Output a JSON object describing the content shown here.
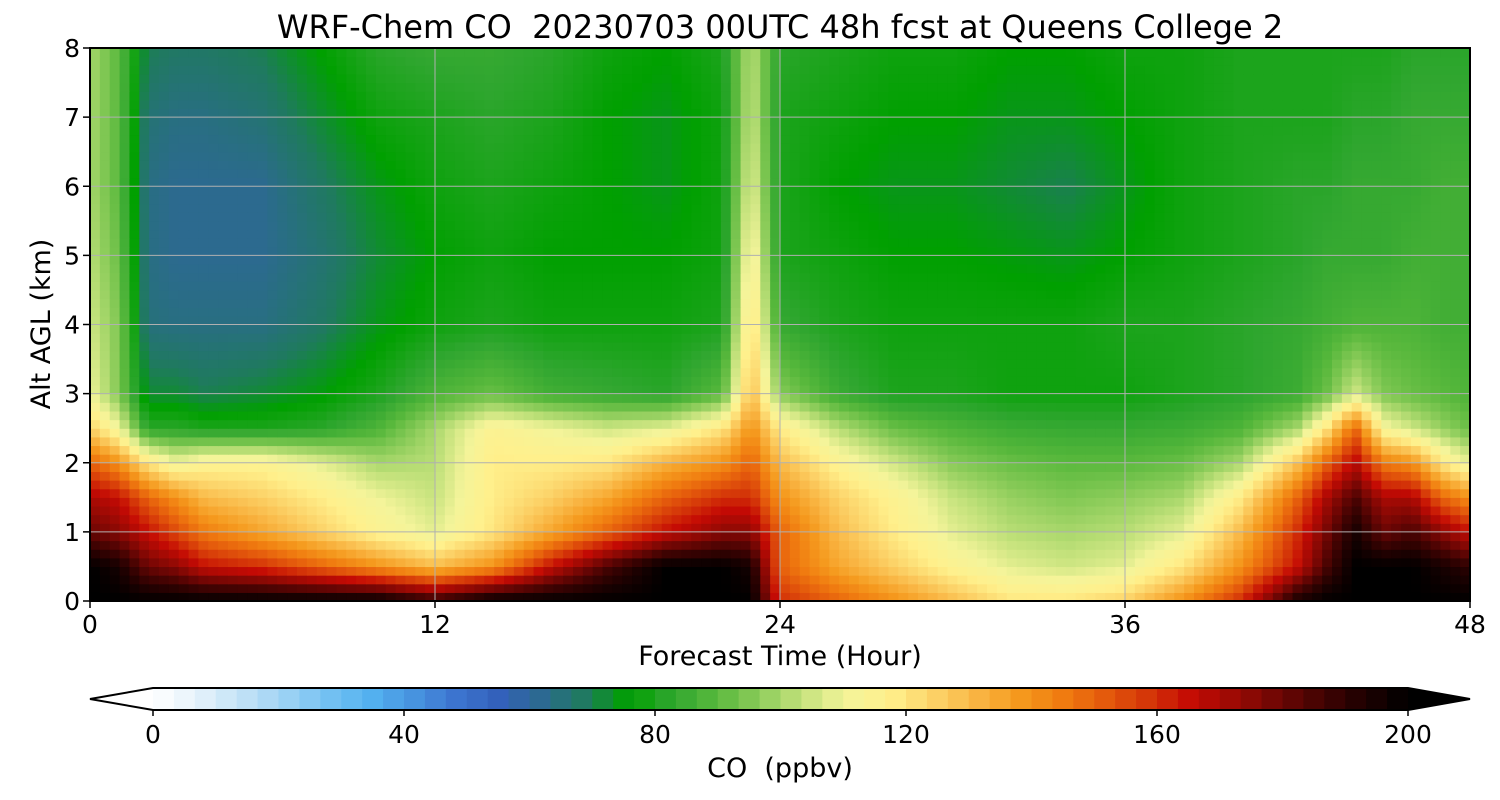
{
  "chart_data": {
    "type": "heatmap",
    "title": "WRF-Chem CO  20230703 00UTC 48h fcst at Queens College 2",
    "xlabel": "Forecast Time (Hour)",
    "ylabel": "Alt AGL (km)",
    "xlim": [
      0,
      48
    ],
    "ylim": [
      0,
      8
    ],
    "x_ticks": [
      0,
      12,
      24,
      36,
      48
    ],
    "y_ticks": [
      0,
      1,
      2,
      3,
      4,
      5,
      6,
      7,
      8
    ],
    "grid": true,
    "colorbar": {
      "label": "CO  (ppbv)",
      "range": [
        0,
        200
      ],
      "ticks": [
        0,
        40,
        80,
        120,
        160,
        200
      ],
      "extend": "both",
      "colors": [
        "#ffffff",
        "#e6f2fb",
        "#c4e3f7",
        "#9fd3f4",
        "#76c2f2",
        "#54b2f0",
        "#4894e0",
        "#3c74cf",
        "#3361ba",
        "#2c6a8f",
        "#1f7a5e",
        "#00a000",
        "#2fa62f",
        "#58b83c",
        "#8ccc5a",
        "#c4e27c",
        "#f4f49a",
        "#fff08c",
        "#fcd46a",
        "#f9b644",
        "#f59a1e",
        "#f07c10",
        "#e45a0c",
        "#d43508",
        "#c40a04",
        "#9a0a04",
        "#6e0604",
        "#420302",
        "#1e0101",
        "#000000"
      ]
    },
    "x": [
      0,
      1,
      2,
      3,
      4,
      6,
      8,
      10,
      12,
      14,
      16,
      18,
      20,
      22,
      23,
      24,
      26,
      28,
      30,
      32,
      34,
      36,
      38,
      40,
      42,
      43,
      44,
      45,
      46,
      47,
      48
    ],
    "y": [
      0,
      0.5,
      1,
      1.5,
      2,
      2.5,
      3,
      4,
      5,
      6,
      7,
      8
    ],
    "z": [
      [
        200,
        200,
        200,
        200,
        200,
        200,
        200,
        200,
        190,
        200,
        200,
        200,
        200,
        200,
        200,
        160,
        150,
        140,
        130,
        120,
        120,
        125,
        140,
        160,
        195,
        200,
        200,
        200,
        200,
        200,
        200
      ],
      [
        200,
        195,
        180,
        175,
        165,
        160,
        150,
        140,
        130,
        140,
        165,
        185,
        200,
        200,
        195,
        150,
        135,
        125,
        115,
        108,
        105,
        108,
        120,
        140,
        165,
        185,
        200,
        200,
        200,
        195,
        190
      ],
      [
        180,
        175,
        165,
        155,
        145,
        135,
        125,
        115,
        108,
        120,
        135,
        150,
        165,
        175,
        175,
        150,
        130,
        118,
        108,
        102,
        100,
        102,
        108,
        130,
        160,
        178,
        195,
        180,
        185,
        175,
        165
      ],
      [
        170,
        165,
        150,
        140,
        130,
        125,
        118,
        110,
        104,
        118,
        125,
        135,
        150,
        160,
        160,
        140,
        125,
        115,
        104,
        98,
        95,
        97,
        100,
        118,
        150,
        170,
        185,
        170,
        170,
        150,
        140
      ],
      [
        150,
        140,
        120,
        110,
        115,
        115,
        108,
        100,
        102,
        118,
        118,
        120,
        132,
        140,
        150,
        130,
        115,
        105,
        96,
        92,
        90,
        90,
        92,
        100,
        128,
        150,
        168,
        145,
        140,
        120,
        108
      ],
      [
        125,
        110,
        82,
        82,
        80,
        80,
        82,
        88,
        100,
        115,
        110,
        105,
        108,
        120,
        140,
        118,
        102,
        92,
        88,
        85,
        84,
        84,
        85,
        88,
        100,
        120,
        150,
        112,
        105,
        98,
        92
      ],
      [
        110,
        95,
        72,
        72,
        70,
        72,
        75,
        80,
        88,
        92,
        86,
        84,
        82,
        90,
        130,
        96,
        85,
        80,
        80,
        78,
        78,
        78,
        80,
        82,
        85,
        92,
        105,
        95,
        92,
        90,
        88
      ],
      [
        105,
        95,
        65,
        64,
        64,
        64,
        68,
        74,
        78,
        80,
        78,
        78,
        78,
        80,
        122,
        84,
        80,
        78,
        78,
        78,
        78,
        80,
        80,
        82,
        84,
        86,
        88,
        88,
        88,
        86,
        86
      ],
      [
        102,
        92,
        64,
        62,
        62,
        62,
        66,
        72,
        76,
        78,
        76,
        76,
        76,
        78,
        115,
        80,
        78,
        76,
        76,
        75,
        74,
        76,
        78,
        80,
        82,
        84,
        84,
        84,
        86,
        86,
        86
      ],
      [
        100,
        90,
        64,
        62,
        62,
        62,
        68,
        74,
        78,
        80,
        78,
        76,
        74,
        78,
        108,
        80,
        76,
        74,
        74,
        72,
        70,
        74,
        78,
        80,
        82,
        82,
        84,
        84,
        84,
        86,
        86
      ],
      [
        100,
        90,
        66,
        64,
        64,
        66,
        72,
        78,
        80,
        82,
        80,
        76,
        74,
        78,
        104,
        80,
        78,
        76,
        76,
        74,
        74,
        76,
        78,
        80,
        80,
        80,
        82,
        82,
        84,
        84,
        84
      ],
      [
        100,
        90,
        70,
        68,
        68,
        70,
        76,
        82,
        84,
        84,
        82,
        78,
        76,
        80,
        102,
        82,
        80,
        78,
        78,
        76,
        76,
        78,
        78,
        80,
        80,
        80,
        80,
        80,
        82,
        82,
        82
      ]
    ]
  }
}
